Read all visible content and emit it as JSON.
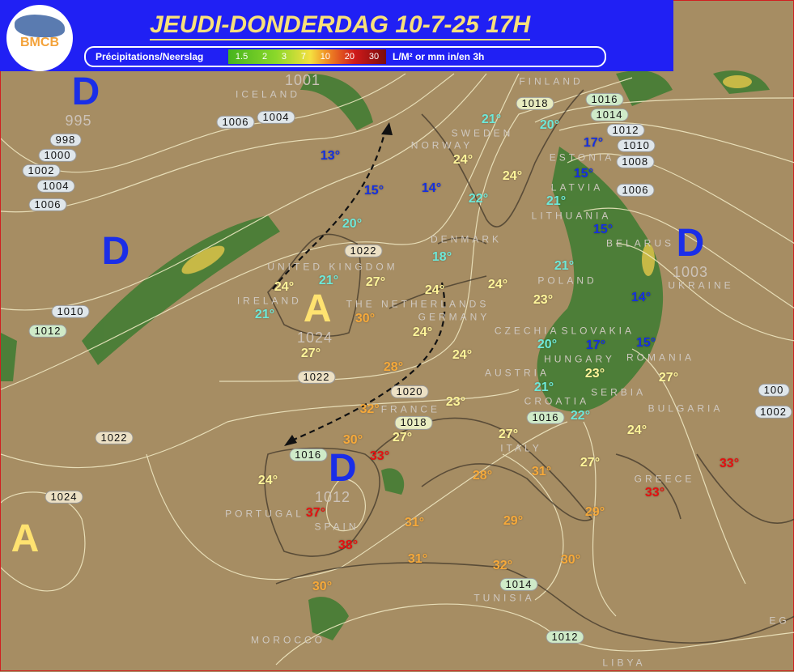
{
  "header": {
    "title": "JEUDI-DONDERDAG  10-7-25  17H",
    "logo_text": "BMCB",
    "legend": {
      "name": "Précipitations/Neerslag",
      "scale": [
        "1.5",
        "2",
        "3",
        "7",
        "10",
        "20",
        "30"
      ],
      "unit": "L/M² or mm in/en 3h"
    }
  },
  "colors": {
    "cold": "#1530e0",
    "mild": "#6ee8d8",
    "warm": "#fff59a",
    "hot": "#f6a93a",
    "very_hot": "#e41010",
    "low": "#1a2ee8",
    "high": "#ffe270"
  },
  "systems": [
    {
      "type": "D",
      "pressure": "995"
    },
    {
      "type": "D",
      "pressure": ""
    },
    {
      "type": "A",
      "pressure": "1024"
    },
    {
      "type": "D",
      "pressure": "1012"
    },
    {
      "type": "D",
      "pressure": "1003"
    },
    {
      "type": "A",
      "pressure": ""
    }
  ],
  "pressure_other": [
    "1001"
  ],
  "isobars": [
    "1006",
    "1004",
    "998",
    "1000",
    "1002",
    "1004",
    "1006",
    "1010",
    "1012",
    "1022",
    "1022",
    "1020",
    "1018",
    "1016",
    "1016",
    "1022",
    "1024",
    "1014",
    "1012",
    "1018",
    "1016",
    "1014",
    "1012",
    "1010",
    "1008",
    "1006",
    "100",
    "1002"
  ],
  "countries": [
    "ICELAND",
    "FINLAND",
    "NORWAY",
    "SWEDEN",
    "ESTONIA",
    "LATVIA",
    "LITHUANIA",
    "BELARUS",
    "DENMARK",
    "UNITED KINGDOM",
    "IRELAND",
    "THE NETHERLANDS",
    "GERMANY",
    "POLAND",
    "UKRAINE",
    "CZECHIA",
    "SLOVAKIA",
    "HUNGARY",
    "ROMANIA",
    "AUSTRIA",
    "SERBIA",
    "CROATIA",
    "BULGARIA",
    "FRANCE",
    "ITALY",
    "PORTUGAL",
    "SPAIN",
    "GREECE",
    "TUNISIA",
    "MOROCCO",
    "LIBYA",
    "EG"
  ],
  "temperatures": [
    "13°",
    "15°",
    "14°",
    "20°",
    "18°",
    "21°",
    "27°",
    "24°",
    "21°",
    "30°",
    "27°",
    "24°",
    "24°",
    "28°",
    "24°",
    "23°",
    "32°",
    "27°",
    "30°",
    "33°",
    "24°",
    "37°",
    "38°",
    "31°",
    "28°",
    "31°",
    "27°",
    "27°",
    "29°",
    "29°",
    "31°",
    "32°",
    "30°",
    "30°",
    "33°",
    "33°",
    "24°",
    "27°",
    "22°",
    "21°",
    "23°",
    "15°",
    "17°",
    "20°",
    "23°",
    "24°",
    "21°",
    "14°",
    "15°",
    "21°",
    "15°",
    "17°",
    "20°",
    "21°",
    "24°",
    "24°",
    "22°"
  ]
}
